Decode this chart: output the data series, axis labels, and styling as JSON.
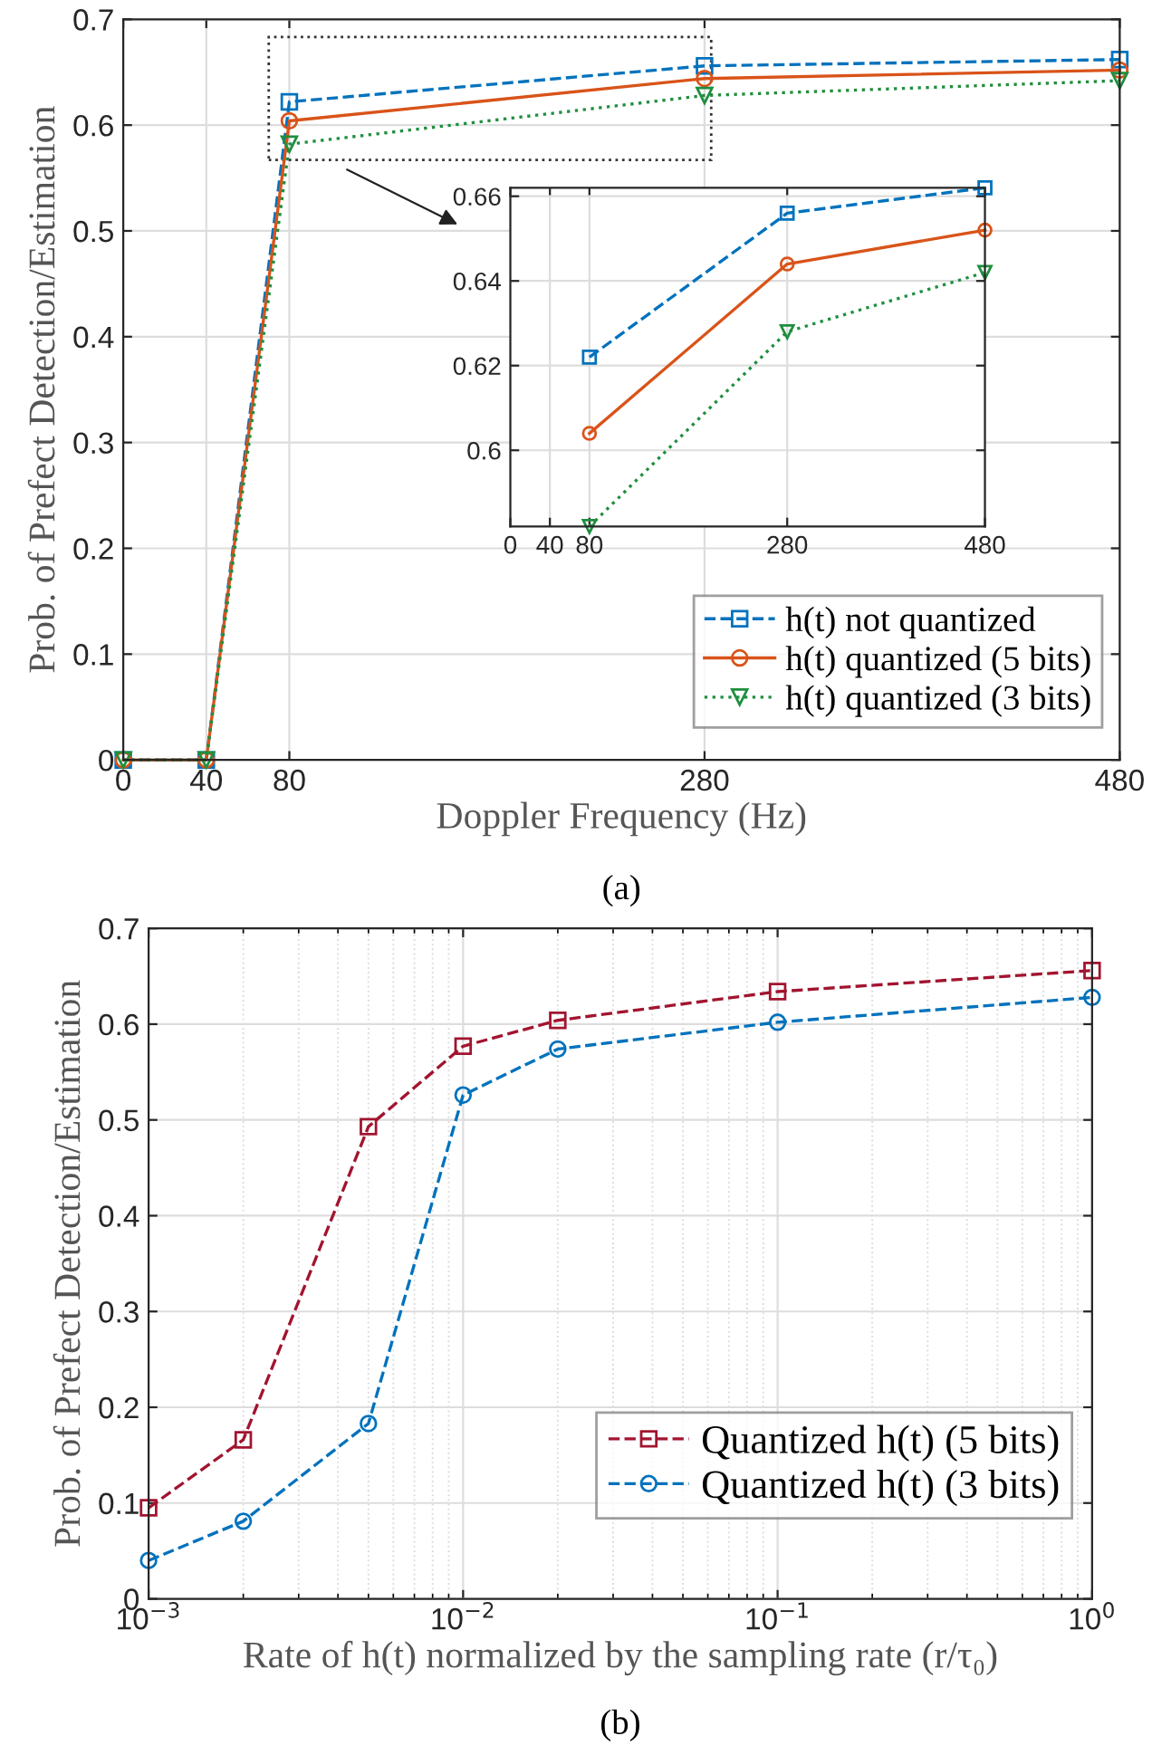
{
  "chart_data": [
    {
      "type": "line",
      "xlabel": "Doppler Frequency (Hz)",
      "ylabel": "Prob. of Prefect Detection/Estimation",
      "x": [
        0,
        40,
        80,
        280,
        480
      ],
      "xlim": [
        0,
        480
      ],
      "xticks": [
        0,
        40,
        80,
        280,
        480
      ],
      "ylim": [
        0,
        0.7
      ],
      "yticks": [
        0,
        0.1,
        0.2,
        0.3,
        0.4,
        0.5,
        0.6,
        0.7
      ],
      "grid": true,
      "legend": "bottom right",
      "annotations": [
        "(a)"
      ],
      "series": [
        {
          "name": "h(t) not quantized",
          "color": "#0072bd",
          "marker": "square",
          "line_style": "dashed",
          "values": [
            0,
            0,
            0.622,
            0.656,
            0.662
          ]
        },
        {
          "name": "h(t) quantized (5 bits)",
          "color": "#d95319",
          "marker": "circle",
          "line_style": "solid",
          "values": [
            0,
            0,
            0.604,
            0.644,
            0.652
          ]
        },
        {
          "name": "h(t) quantized (3 bits)",
          "color": "#1f8f3f",
          "marker": "triangle",
          "line_style": "dotted",
          "values": [
            0,
            0,
            0.582,
            0.628,
            0.642
          ]
        }
      ]
    },
    {
      "type": "line",
      "xlim": [
        0,
        480
      ],
      "xticks": [
        0,
        40,
        80,
        280,
        480
      ],
      "ylim": [
        0.582,
        0.662
      ],
      "yticks": [
        0.6,
        0.62,
        0.64,
        0.66
      ],
      "grid": true,
      "series": [
        {
          "color": "#0072bd",
          "marker": "square",
          "line_style": "dashed",
          "x": [
            80,
            280,
            480
          ],
          "values": [
            0.622,
            0.656,
            0.662
          ]
        },
        {
          "color": "#d95319",
          "marker": "circle",
          "line_style": "solid",
          "x": [
            80,
            280,
            480
          ],
          "values": [
            0.604,
            0.644,
            0.652
          ]
        },
        {
          "color": "#1f8f3f",
          "marker": "triangle",
          "line_style": "dotted",
          "x": [
            80,
            280,
            480
          ],
          "values": [
            0.582,
            0.628,
            0.642
          ]
        }
      ]
    },
    {
      "type": "line",
      "log": "x",
      "xlabel": "Rate of h(t) normalized by the sampling rate (r/τ₀)",
      "ylabel": "Prob. of Prefect Detection/Estimation",
      "x": [
        0.001,
        0.002,
        0.005,
        0.01,
        0.02,
        0.1,
        1
      ],
      "xlim": [
        0.001,
        1
      ],
      "xticks": [
        {
          "value": 0.001,
          "label": "10$^{−3}$"
        },
        {
          "value": 0.01,
          "label": "10$^{−2}$"
        },
        {
          "value": 0.1,
          "label": "10$^{−1}$"
        },
        {
          "value": 1,
          "label": "10$^{0}$"
        }
      ],
      "ylim": [
        0,
        0.7
      ],
      "yticks": [
        0,
        0.1,
        0.2,
        0.3,
        0.4,
        0.5,
        0.6,
        0.7
      ],
      "grid": true,
      "legend": "bottom right",
      "annotations": [
        "(b)"
      ],
      "series": [
        {
          "name": "Quantized h(t) (5 bits)",
          "color": "#a2142f",
          "marker": "square",
          "line_style": "dashed",
          "values": [
            0.095,
            0.166,
            0.493,
            0.577,
            0.604,
            0.634,
            0.656
          ]
        },
        {
          "name": "Quantized h(t) (3 bits)",
          "color": "#0072bd",
          "marker": "circle",
          "line_style": "dashed",
          "values": [
            0.04,
            0.081,
            0.183,
            0.526,
            0.574,
            0.602,
            0.628
          ]
        }
      ]
    }
  ]
}
